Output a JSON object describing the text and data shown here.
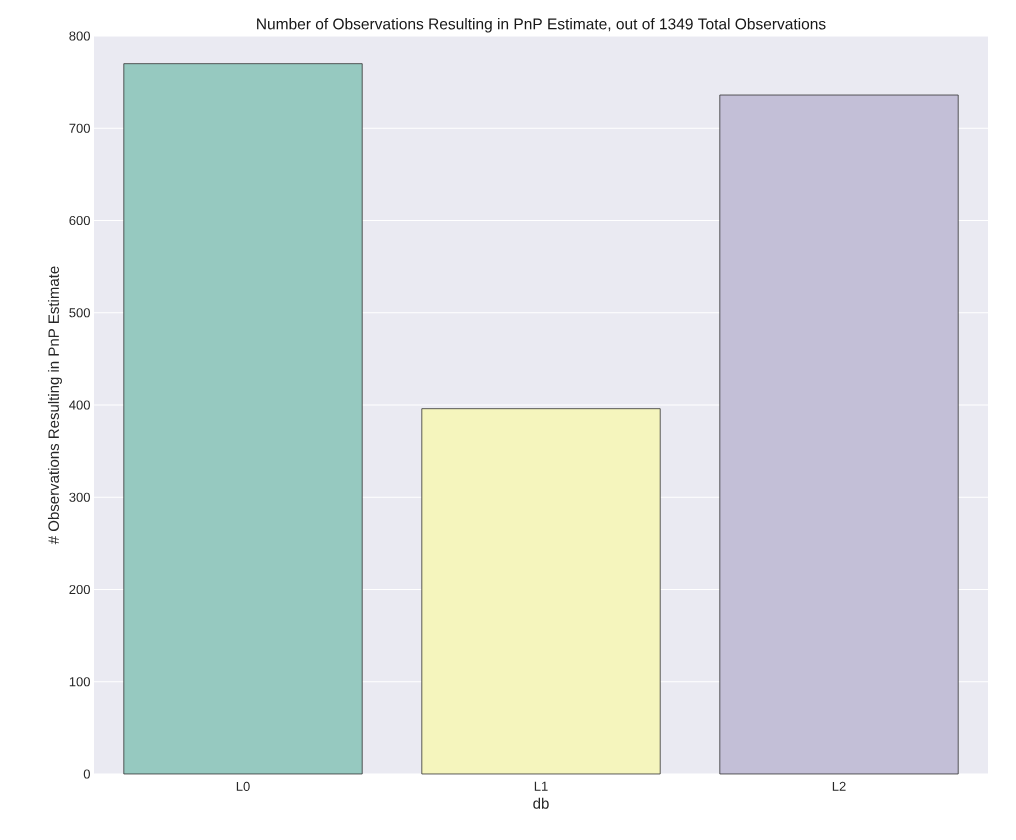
{
  "chart_data": {
    "type": "bar",
    "title": "Number of Observations Resulting in PnP Estimate, out of 1349 Total Observations",
    "xlabel": "db",
    "ylabel": "# Observations Resulting in PnP Estimate",
    "categories": [
      "L0",
      "L1",
      "L2"
    ],
    "values": [
      770,
      396,
      736
    ],
    "colors": [
      "#96c9c0",
      "#f5f5bd",
      "#c3bfd7"
    ],
    "ylim": [
      0,
      800
    ],
    "yticks": [
      0,
      100,
      200,
      300,
      400,
      500,
      600,
      700,
      800
    ],
    "grid": "y"
  }
}
